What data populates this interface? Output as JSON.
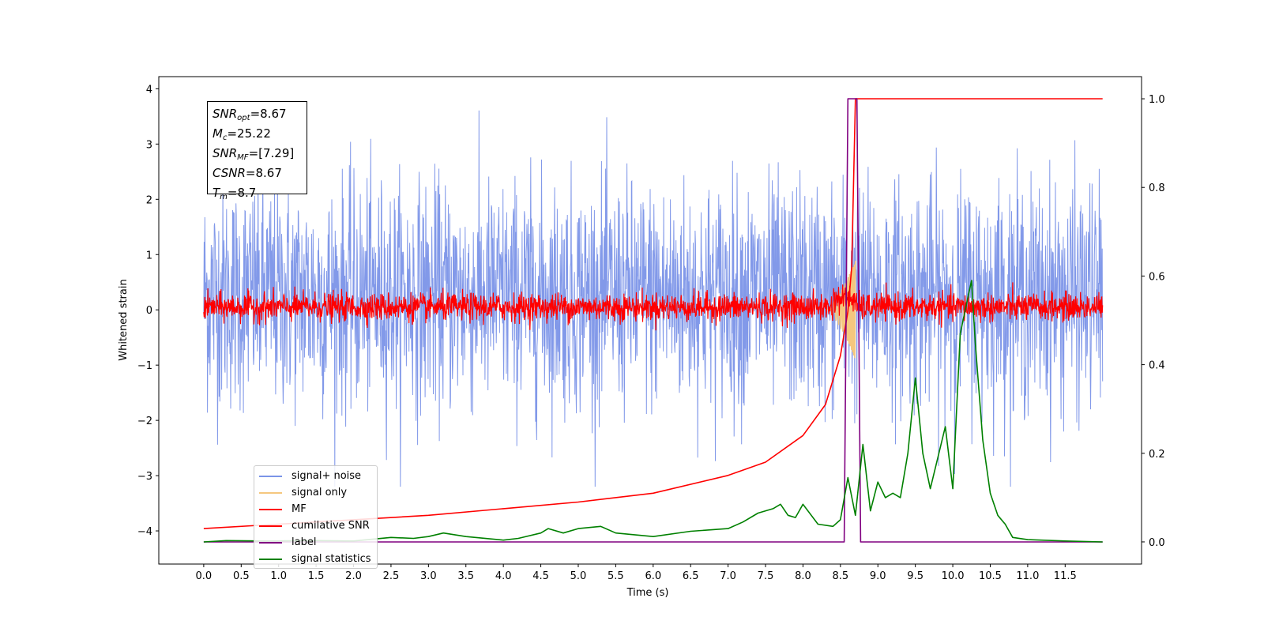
{
  "chart_data": {
    "type": "line",
    "xlabel": "Time (s)",
    "ylabel": "Whitened strain",
    "xlim": [
      -0.6,
      12.52
    ],
    "ylim": [
      -4.6,
      4.22
    ],
    "ylim_right": [
      -0.05,
      1.05
    ],
    "x_ticks": [
      "0.0",
      "0.5",
      "1.0",
      "1.5",
      "2.0",
      "2.5",
      "3.0",
      "3.5",
      "4.0",
      "4.5",
      "5.0",
      "5.5",
      "6.0",
      "6.5",
      "7.0",
      "7.5",
      "8.0",
      "8.5",
      "9.0",
      "9.5",
      "10.0",
      "10.5",
      "11.0",
      "11.5"
    ],
    "y_ticks_left": [
      "−4",
      "−3",
      "−2",
      "−1",
      "0",
      "1",
      "2",
      "3",
      "4"
    ],
    "y_ticks_right": [
      "0.0",
      "0.2",
      "0.4",
      "0.6",
      "0.8",
      "1.0"
    ],
    "grid": false,
    "legend_position": "lower-left",
    "annotation": {
      "SNR_opt": "8.67",
      "M_c": "25.22",
      "SNR_MF": "[7.29]",
      "CSNR": "8.67",
      "T_m": "8.7"
    },
    "series": [
      {
        "name": "signal+ noise",
        "color": "#7b94e8",
        "axis": "left",
        "note_shape": "noise band",
        "x_range": [
          0.0,
          12.0
        ],
        "typical_range": [
          -1.8,
          2.3
        ],
        "extremes": [
          -3.2,
          3.8
        ]
      },
      {
        "name": "signal only",
        "color": "#f5c77e",
        "axis": "left",
        "note_shape": "chirp",
        "x_range": [
          8.3,
          8.7
        ],
        "peak_amplitude": 0.9
      },
      {
        "name": "MF",
        "color": "#ff0000",
        "axis": "left",
        "note_shape": "noise band",
        "x_range": [
          0.0,
          12.0
        ],
        "typical_range": [
          -0.2,
          0.3
        ]
      },
      {
        "name": "cumilative SNR",
        "color": "#ff0000",
        "axis": "right",
        "x": [
          0.0,
          1.0,
          2.0,
          3.0,
          4.0,
          5.0,
          6.0,
          7.0,
          7.5,
          8.0,
          8.3,
          8.5,
          8.6,
          8.65,
          8.7,
          12.0
        ],
        "y": [
          0.03,
          0.04,
          0.05,
          0.06,
          0.075,
          0.09,
          0.11,
          0.15,
          0.18,
          0.24,
          0.31,
          0.42,
          0.52,
          0.62,
          1.0,
          1.0
        ]
      },
      {
        "name": "label",
        "color": "#800080",
        "axis": "right",
        "x": [
          0.0,
          8.55,
          8.6,
          8.72,
          8.77,
          12.0
        ],
        "y": [
          0.0,
          0.0,
          1.0,
          1.0,
          0.0,
          0.0
        ]
      },
      {
        "name": "signal statistics",
        "color": "#008000",
        "axis": "right",
        "x": [
          0.0,
          0.3,
          0.8,
          1.5,
          2.0,
          2.5,
          2.8,
          3.0,
          3.2,
          3.5,
          4.0,
          4.2,
          4.5,
          4.6,
          4.8,
          5.0,
          5.3,
          5.5,
          6.0,
          6.5,
          7.0,
          7.2,
          7.4,
          7.6,
          7.7,
          7.8,
          7.9,
          8.0,
          8.2,
          8.4,
          8.5,
          8.6,
          8.7,
          8.8,
          8.9,
          9.0,
          9.1,
          9.2,
          9.3,
          9.4,
          9.5,
          9.6,
          9.7,
          9.8,
          9.9,
          10.0,
          10.1,
          10.2,
          10.25,
          10.3,
          10.4,
          10.5,
          10.6,
          10.7,
          10.8,
          11.0,
          11.5,
          12.0
        ],
        "y": [
          0.0,
          0.003,
          0.002,
          0.003,
          0.002,
          0.01,
          0.008,
          0.012,
          0.02,
          0.012,
          0.004,
          0.008,
          0.02,
          0.03,
          0.02,
          0.03,
          0.035,
          0.02,
          0.012,
          0.024,
          0.03,
          0.045,
          0.065,
          0.075,
          0.085,
          0.06,
          0.055,
          0.085,
          0.04,
          0.035,
          0.05,
          0.145,
          0.06,
          0.22,
          0.07,
          0.135,
          0.1,
          0.11,
          0.1,
          0.2,
          0.37,
          0.2,
          0.12,
          0.19,
          0.26,
          0.12,
          0.47,
          0.55,
          0.59,
          0.45,
          0.23,
          0.11,
          0.06,
          0.04,
          0.01,
          0.005,
          0.002,
          0.0
        ]
      }
    ]
  }
}
